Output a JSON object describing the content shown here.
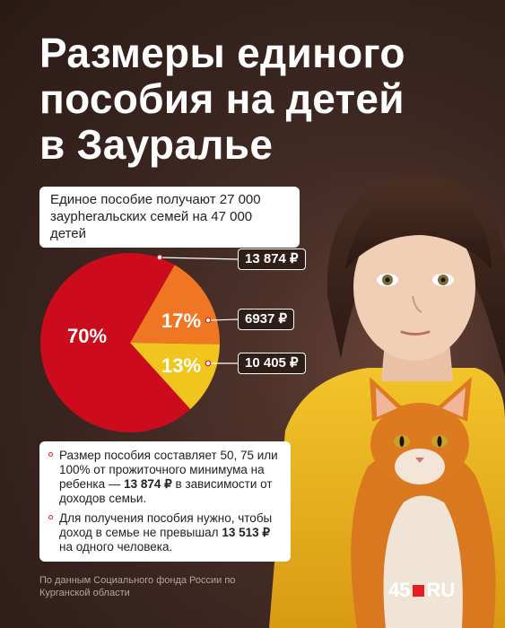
{
  "title_lines": [
    "Размеры единого",
    "пособия на детей",
    "в Зауралье"
  ],
  "summary": "Единое пособие получают 27 000 заурherальских семей на 47 000 детей",
  "chart_data": {
    "type": "pie",
    "slices": [
      {
        "value": 70,
        "label": "70%",
        "amount": "13 874 ₽",
        "color": "#cc0c1c"
      },
      {
        "value": 17,
        "label": "17%",
        "amount": "6937 ₽",
        "color": "#ef7622"
      },
      {
        "value": 13,
        "label": "13%",
        "amount": "10 405 ₽",
        "color": "#f0c51e"
      }
    ]
  },
  "notes": [
    {
      "before": "Размер пособия составляет 50, 75 или 100% от прожиточного минимума на ребенка — ",
      "bold": "13 874 ₽",
      "after": " в зависимости от доходов семьи."
    },
    {
      "before": "Для получения пособия нужно, чтобы доход в семье не превышал ",
      "bold": "13 513 ₽",
      "after": " на одного человека."
    }
  ],
  "source": "По данным Социального фонда России по Курганской области",
  "logo": {
    "left": "45",
    "right": "RU"
  }
}
